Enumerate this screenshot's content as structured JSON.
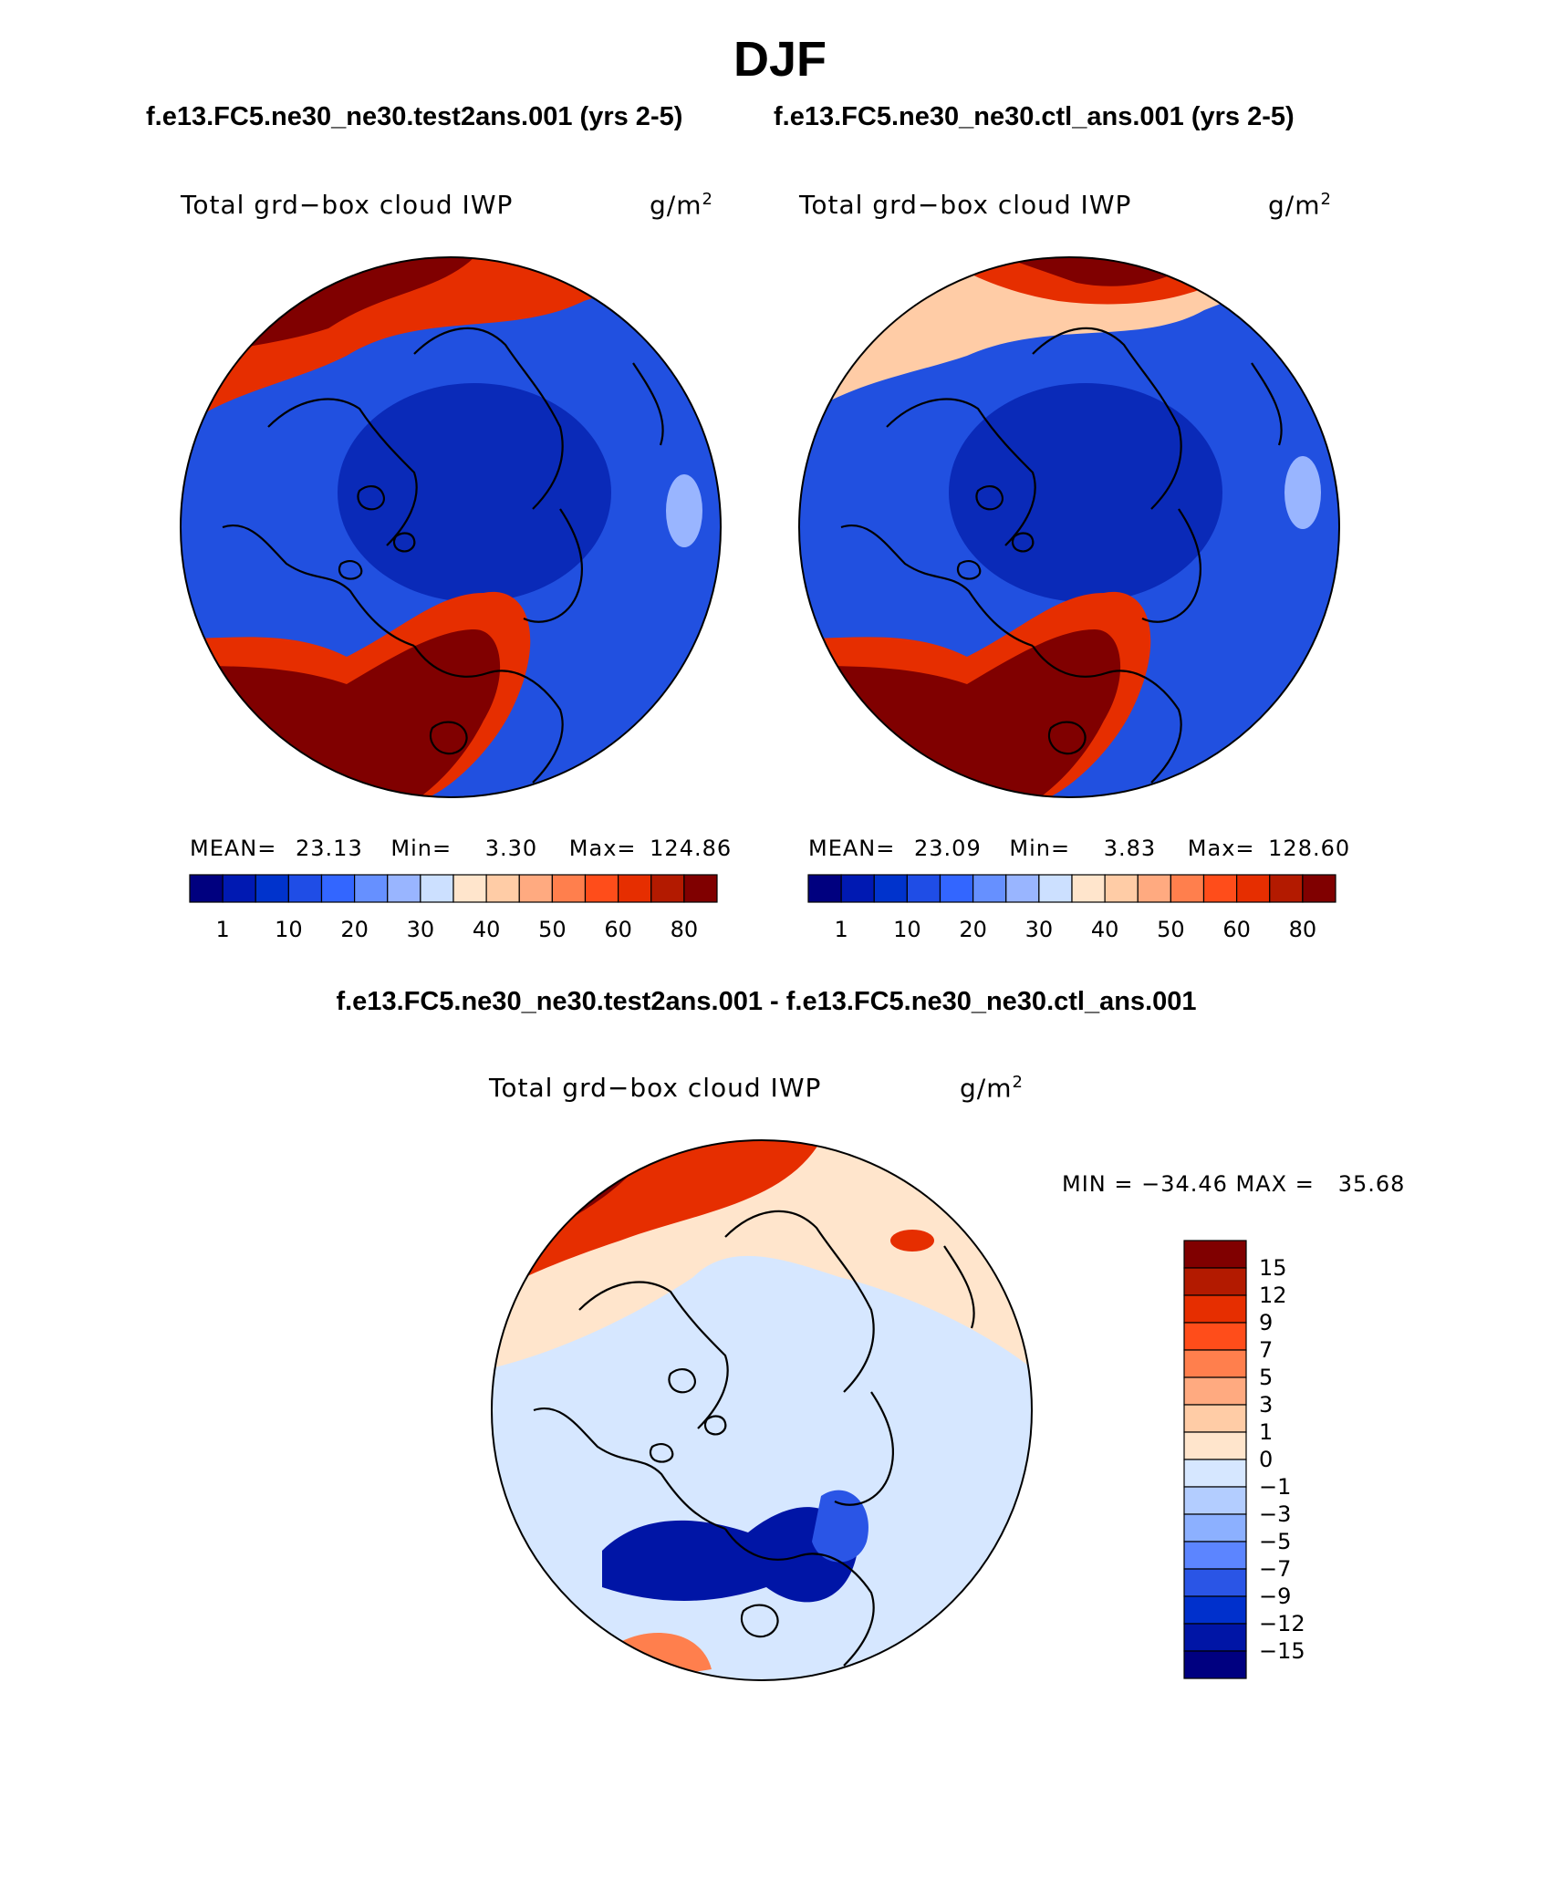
{
  "page": {
    "season": "DJF",
    "top_left_case": "f.e13.FC5.ne30_ne30.test2ans.001 (yrs 2-5)",
    "top_right_case": "f.e13.FC5.ne30_ne30.ctl_ans.001 (yrs 2-5)",
    "diff_title": "f.e13.FC5.ne30_ne30.test2ans.001 - f.e13.FC5.ne30_ne30.ctl_ans.001"
  },
  "panels": {
    "left": {
      "variable": "Total grd−box cloud IWP",
      "units_base": "g/m",
      "units_exp": "2",
      "mean_label": "MEAN=",
      "mean": "23.13",
      "min_label": "Min=",
      "min": "3.30",
      "max_label": "Max=",
      "max": "124.86"
    },
    "right": {
      "variable": "Total grd−box cloud IWP",
      "units_base": "g/m",
      "units_exp": "2",
      "mean_label": "MEAN=",
      "mean": "23.09",
      "min_label": "Min=",
      "min": "3.83",
      "max_label": "Max=",
      "max": "128.60"
    },
    "diff": {
      "variable": "Total grd−box cloud IWP",
      "units_base": "g/m",
      "units_exp": "2",
      "minmax_text": "MIN = −34.46 MAX =   35.68"
    }
  },
  "colorbars": {
    "abs_labels": [
      "1",
      "10",
      "20",
      "30",
      "40",
      "50",
      "60",
      "80"
    ],
    "abs_colors": [
      "#00007f",
      "#0019b2",
      "#0033cc",
      "#1f4de6",
      "#3366ff",
      "#6690ff",
      "#99b5ff",
      "#cce0ff",
      "#ffe5cc",
      "#ffcca6",
      "#ffaa80",
      "#ff7f4d",
      "#ff4d1a",
      "#e62e00",
      "#b31a00",
      "#800000"
    ],
    "diff_labels": [
      "15",
      "12",
      "9",
      "7",
      "5",
      "3",
      "1",
      "0",
      "−1",
      "−3",
      "−5",
      "−7",
      "−9",
      "−12",
      "−15"
    ],
    "diff_colors": [
      "#800000",
      "#b31a00",
      "#e62e00",
      "#ff4d1a",
      "#ff7f4d",
      "#ffaa80",
      "#ffcca6",
      "#ffe5cc",
      "#d6e7ff",
      "#b3cdff",
      "#8cb0ff",
      "#5c85ff",
      "#2a55e6",
      "#0030cc",
      "#0015a6",
      "#000080"
    ]
  },
  "map_colors": {
    "dark_blue": "#0a2ab8",
    "mid_blue": "#2150e0",
    "blue": "#3366ff",
    "light_blue": "#cce0ff",
    "pale_orange": "#ffe5cc",
    "orange": "#ff7f4d",
    "red": "#e62e00",
    "dark_red": "#800000"
  }
}
